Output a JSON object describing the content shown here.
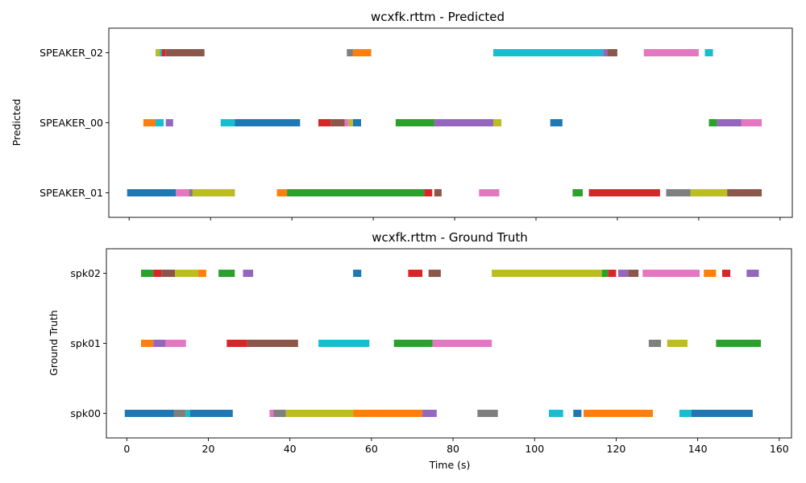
{
  "chart_data": [
    {
      "type": "timeline",
      "title": "wcxfk.rttm - Predicted",
      "ylabel": "Predicted",
      "xlabel": "",
      "xlim": [
        -5,
        163
      ],
      "x_ticks": [
        0,
        20,
        40,
        60,
        80,
        100,
        120,
        140,
        160
      ],
      "x_tick_labels_visible": false,
      "categories": [
        "SPEAKER_01",
        "SPEAKER_00",
        "SPEAKER_02"
      ],
      "segments": [
        {
          "row": "SPEAKER_01",
          "start": -0.5,
          "end": 11.5,
          "color": "#1f77b4"
        },
        {
          "row": "SPEAKER_01",
          "start": 11.5,
          "end": 14.8,
          "color": "#e377c2"
        },
        {
          "row": "SPEAKER_01",
          "start": 14.8,
          "end": 15.6,
          "color": "#7f7f7f"
        },
        {
          "row": "SPEAKER_01",
          "start": 15.6,
          "end": 26.0,
          "color": "#bcbd22"
        },
        {
          "row": "SPEAKER_01",
          "start": 36.3,
          "end": 38.8,
          "color": "#ff7f0e"
        },
        {
          "row": "SPEAKER_01",
          "start": 38.8,
          "end": 72.5,
          "color": "#2ca02c"
        },
        {
          "row": "SPEAKER_01",
          "start": 72.5,
          "end": 74.5,
          "color": "#d62728"
        },
        {
          "row": "SPEAKER_01",
          "start": 75.0,
          "end": 76.8,
          "color": "#8c564b"
        },
        {
          "row": "SPEAKER_01",
          "start": 86.0,
          "end": 91.0,
          "color": "#e377c2"
        },
        {
          "row": "SPEAKER_01",
          "start": 109.0,
          "end": 111.5,
          "color": "#2ca02c"
        },
        {
          "row": "SPEAKER_01",
          "start": 113.0,
          "end": 130.5,
          "color": "#d62728"
        },
        {
          "row": "SPEAKER_01",
          "start": 132.0,
          "end": 138.0,
          "color": "#7f7f7f"
        },
        {
          "row": "SPEAKER_01",
          "start": 138.0,
          "end": 147.0,
          "color": "#bcbd22"
        },
        {
          "row": "SPEAKER_01",
          "start": 147.0,
          "end": 155.5,
          "color": "#8c564b"
        },
        {
          "row": "SPEAKER_00",
          "start": 3.5,
          "end": 6.5,
          "color": "#ff7f0e"
        },
        {
          "row": "SPEAKER_00",
          "start": 6.5,
          "end": 8.5,
          "color": "#17becf"
        },
        {
          "row": "SPEAKER_00",
          "start": 9.0,
          "end": 10.8,
          "color": "#9467bd"
        },
        {
          "row": "SPEAKER_00",
          "start": 22.5,
          "end": 26.0,
          "color": "#17becf"
        },
        {
          "row": "SPEAKER_00",
          "start": 26.0,
          "end": 42.0,
          "color": "#1f77b4"
        },
        {
          "row": "SPEAKER_00",
          "start": 46.5,
          "end": 49.5,
          "color": "#d62728"
        },
        {
          "row": "SPEAKER_00",
          "start": 49.5,
          "end": 53.0,
          "color": "#8c564b"
        },
        {
          "row": "SPEAKER_00",
          "start": 53.0,
          "end": 54.0,
          "color": "#e377c2"
        },
        {
          "row": "SPEAKER_00",
          "start": 54.0,
          "end": 55.0,
          "color": "#bcbd22"
        },
        {
          "row": "SPEAKER_00",
          "start": 55.0,
          "end": 57.0,
          "color": "#1f77b4"
        },
        {
          "row": "SPEAKER_00",
          "start": 65.5,
          "end": 75.0,
          "color": "#2ca02c"
        },
        {
          "row": "SPEAKER_00",
          "start": 75.0,
          "end": 89.5,
          "color": "#9467bd"
        },
        {
          "row": "SPEAKER_00",
          "start": 89.5,
          "end": 91.5,
          "color": "#bcbd22"
        },
        {
          "row": "SPEAKER_00",
          "start": 103.5,
          "end": 106.5,
          "color": "#1f77b4"
        },
        {
          "row": "SPEAKER_00",
          "start": 142.5,
          "end": 144.5,
          "color": "#2ca02c"
        },
        {
          "row": "SPEAKER_00",
          "start": 144.5,
          "end": 150.5,
          "color": "#9467bd"
        },
        {
          "row": "SPEAKER_00",
          "start": 150.5,
          "end": 155.5,
          "color": "#e377c2"
        },
        {
          "row": "SPEAKER_02",
          "start": 6.5,
          "end": 7.5,
          "color": "#bcbd22"
        },
        {
          "row": "SPEAKER_02",
          "start": 7.5,
          "end": 8.0,
          "color": "#17becf"
        },
        {
          "row": "SPEAKER_02",
          "start": 8.0,
          "end": 9.0,
          "color": "#d62728"
        },
        {
          "row": "SPEAKER_02",
          "start": 9.0,
          "end": 18.5,
          "color": "#8c564b"
        },
        {
          "row": "SPEAKER_02",
          "start": 53.5,
          "end": 55.0,
          "color": "#7f7f7f"
        },
        {
          "row": "SPEAKER_02",
          "start": 55.0,
          "end": 59.5,
          "color": "#ff7f0e"
        },
        {
          "row": "SPEAKER_02",
          "start": 89.5,
          "end": 116.5,
          "color": "#17becf"
        },
        {
          "row": "SPEAKER_02",
          "start": 116.5,
          "end": 117.5,
          "color": "#9467bd"
        },
        {
          "row": "SPEAKER_02",
          "start": 117.5,
          "end": 120.0,
          "color": "#8c564b"
        },
        {
          "row": "SPEAKER_02",
          "start": 126.5,
          "end": 140.0,
          "color": "#e377c2"
        },
        {
          "row": "SPEAKER_02",
          "start": 141.5,
          "end": 143.5,
          "color": "#17becf"
        }
      ]
    },
    {
      "type": "timeline",
      "title": "wcxfk.rttm - Ground Truth",
      "ylabel": "Ground Truth",
      "xlabel": "Time (s)",
      "xlim": [
        -5,
        163
      ],
      "x_ticks": [
        0,
        20,
        40,
        60,
        80,
        100,
        120,
        140,
        160
      ],
      "x_tick_labels_visible": true,
      "categories": [
        "spk00",
        "spk01",
        "spk02"
      ],
      "segments": [
        {
          "row": "spk00",
          "start": -0.5,
          "end": 11.5,
          "color": "#1f77b4"
        },
        {
          "row": "spk00",
          "start": 11.5,
          "end": 14.5,
          "color": "#7f7f7f"
        },
        {
          "row": "spk00",
          "start": 14.5,
          "end": 15.5,
          "color": "#17becf"
        },
        {
          "row": "spk00",
          "start": 15.5,
          "end": 26.0,
          "color": "#1f77b4"
        },
        {
          "row": "spk00",
          "start": 35.0,
          "end": 36.0,
          "color": "#e377c2"
        },
        {
          "row": "spk00",
          "start": 36.0,
          "end": 39.0,
          "color": "#7f7f7f"
        },
        {
          "row": "spk00",
          "start": 39.0,
          "end": 55.5,
          "color": "#bcbd22"
        },
        {
          "row": "spk00",
          "start": 55.5,
          "end": 72.5,
          "color": "#ff7f0e"
        },
        {
          "row": "spk00",
          "start": 72.5,
          "end": 76.0,
          "color": "#9467bd"
        },
        {
          "row": "spk00",
          "start": 86.0,
          "end": 91.0,
          "color": "#7f7f7f"
        },
        {
          "row": "spk00",
          "start": 103.5,
          "end": 107.0,
          "color": "#17becf"
        },
        {
          "row": "spk00",
          "start": 109.5,
          "end": 111.5,
          "color": "#1f77b4"
        },
        {
          "row": "spk00",
          "start": 112.0,
          "end": 129.0,
          "color": "#ff7f0e"
        },
        {
          "row": "spk00",
          "start": 135.5,
          "end": 138.5,
          "color": "#17becf"
        },
        {
          "row": "spk00",
          "start": 138.5,
          "end": 153.5,
          "color": "#1f77b4"
        },
        {
          "row": "spk01",
          "start": 3.5,
          "end": 6.5,
          "color": "#ff7f0e"
        },
        {
          "row": "spk01",
          "start": 6.5,
          "end": 9.5,
          "color": "#9467bd"
        },
        {
          "row": "spk01",
          "start": 9.5,
          "end": 14.5,
          "color": "#e377c2"
        },
        {
          "row": "spk01",
          "start": 24.5,
          "end": 29.5,
          "color": "#d62728"
        },
        {
          "row": "spk01",
          "start": 29.5,
          "end": 42.0,
          "color": "#8c564b"
        },
        {
          "row": "spk01",
          "start": 47.0,
          "end": 59.5,
          "color": "#17becf"
        },
        {
          "row": "spk01",
          "start": 65.5,
          "end": 75.0,
          "color": "#2ca02c"
        },
        {
          "row": "spk01",
          "start": 75.0,
          "end": 89.5,
          "color": "#e377c2"
        },
        {
          "row": "spk01",
          "start": 128.0,
          "end": 131.0,
          "color": "#7f7f7f"
        },
        {
          "row": "spk01",
          "start": 132.5,
          "end": 137.5,
          "color": "#bcbd22"
        },
        {
          "row": "spk01",
          "start": 144.5,
          "end": 155.5,
          "color": "#2ca02c"
        },
        {
          "row": "spk02",
          "start": 3.5,
          "end": 6.5,
          "color": "#2ca02c"
        },
        {
          "row": "spk02",
          "start": 6.5,
          "end": 8.5,
          "color": "#d62728"
        },
        {
          "row": "spk02",
          "start": 8.5,
          "end": 11.8,
          "color": "#8c564b"
        },
        {
          "row": "spk02",
          "start": 11.8,
          "end": 17.5,
          "color": "#bcbd22"
        },
        {
          "row": "spk02",
          "start": 17.5,
          "end": 19.5,
          "color": "#ff7f0e"
        },
        {
          "row": "spk02",
          "start": 22.5,
          "end": 26.5,
          "color": "#2ca02c"
        },
        {
          "row": "spk02",
          "start": 28.5,
          "end": 31.0,
          "color": "#9467bd"
        },
        {
          "row": "spk02",
          "start": 55.5,
          "end": 57.5,
          "color": "#1f77b4"
        },
        {
          "row": "spk02",
          "start": 69.0,
          "end": 72.5,
          "color": "#d62728"
        },
        {
          "row": "spk02",
          "start": 74.0,
          "end": 77.0,
          "color": "#8c564b"
        },
        {
          "row": "spk02",
          "start": 89.5,
          "end": 116.5,
          "color": "#bcbd22"
        },
        {
          "row": "spk02",
          "start": 116.5,
          "end": 118.0,
          "color": "#2ca02c"
        },
        {
          "row": "spk02",
          "start": 118.0,
          "end": 120.0,
          "color": "#d62728"
        },
        {
          "row": "spk02",
          "start": 120.5,
          "end": 123.0,
          "color": "#9467bd"
        },
        {
          "row": "spk02",
          "start": 123.0,
          "end": 125.5,
          "color": "#8c564b"
        },
        {
          "row": "spk02",
          "start": 126.5,
          "end": 140.5,
          "color": "#e377c2"
        },
        {
          "row": "spk02",
          "start": 141.5,
          "end": 144.5,
          "color": "#ff7f0e"
        },
        {
          "row": "spk02",
          "start": 146.0,
          "end": 148.0,
          "color": "#d62728"
        },
        {
          "row": "spk02",
          "start": 152.0,
          "end": 155.0,
          "color": "#9467bd"
        }
      ]
    }
  ]
}
